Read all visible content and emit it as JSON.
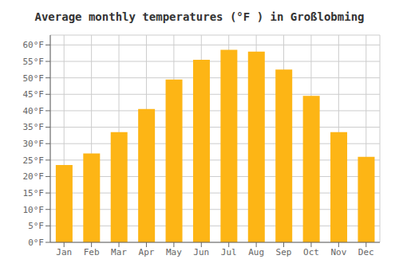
{
  "chart_data": {
    "type": "bar",
    "title": "Average monthly temperatures (°F ) in Großlobming",
    "categories": [
      "Jan",
      "Feb",
      "Mar",
      "Apr",
      "May",
      "Jun",
      "Jul",
      "Aug",
      "Sep",
      "Oct",
      "Nov",
      "Dec"
    ],
    "values": [
      23.5,
      27.0,
      33.5,
      40.5,
      49.5,
      55.5,
      58.5,
      58.0,
      52.5,
      44.5,
      33.5,
      26.0
    ],
    "color": "#FDB515",
    "ylim": [
      0,
      63
    ],
    "yticks": [
      {
        "value": 0,
        "label": "0°F"
      },
      {
        "value": 5,
        "label": "5°F"
      },
      {
        "value": 10,
        "label": "10°F"
      },
      {
        "value": 15,
        "label": "15°F"
      },
      {
        "value": 20,
        "label": "20°F"
      },
      {
        "value": 25,
        "label": "25°F"
      },
      {
        "value": 30,
        "label": "30°F"
      },
      {
        "value": 35,
        "label": "35°F"
      },
      {
        "value": 40,
        "label": "40°F"
      },
      {
        "value": 45,
        "label": "45°F"
      },
      {
        "value": 50,
        "label": "50°F"
      },
      {
        "value": 55,
        "label": "55°F"
      },
      {
        "value": 60,
        "label": "60°F"
      }
    ],
    "grid": true
  }
}
